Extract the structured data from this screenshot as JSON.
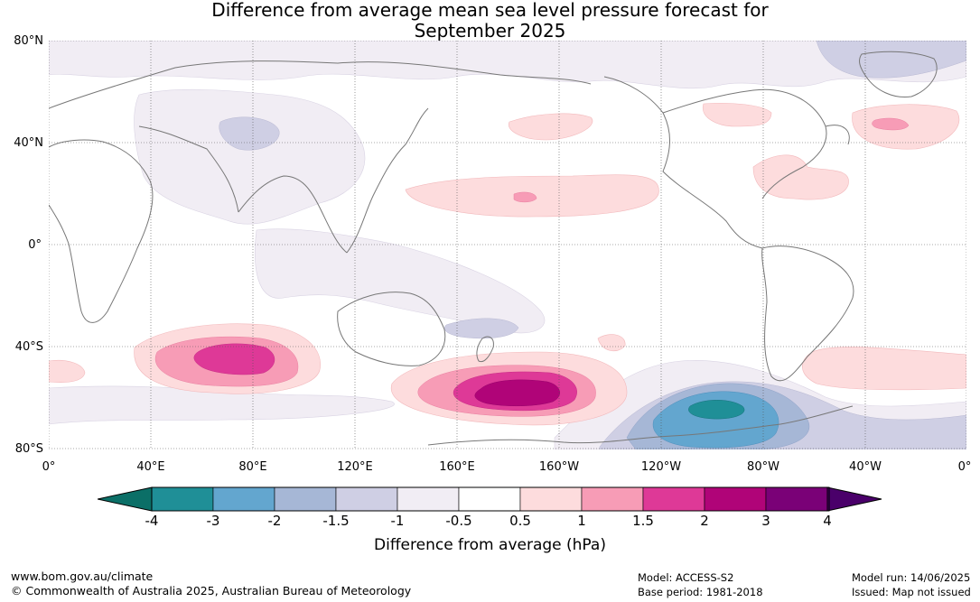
{
  "title": {
    "line1": "Difference from average mean sea level pressure forecast for",
    "line2": "September 2025"
  },
  "axes": {
    "lat_labels": [
      "80°N",
      "40°N",
      "0°",
      "40°S",
      "80°S"
    ],
    "lon_labels": [
      "0°",
      "40°E",
      "80°E",
      "120°E",
      "160°E",
      "160°W",
      "120°W",
      "80°W",
      "40°W",
      "0°"
    ]
  },
  "colorbar": {
    "ticks": [
      "-4",
      "-3",
      "-2",
      "-1.5",
      "-1",
      "-0.5",
      "0.5",
      "1",
      "1.5",
      "2",
      "3",
      "4"
    ],
    "colors": [
      "#0b6f67",
      "#1f8f97",
      "#63a6cf",
      "#a6b7d6",
      "#cfcfe4",
      "#f1edf4",
      "#ffffff",
      "#fddcdd",
      "#f79cb6",
      "#de3997",
      "#b00478",
      "#7a0177",
      "#4a006a"
    ],
    "label": "Difference from average (hPa)"
  },
  "footer": {
    "url": "www.bom.gov.au/climate",
    "copyright": "© Commonwealth of Australia 2025, Australian Bureau of Meteorology",
    "model": "Model: ACCESS-S2",
    "base_period": "Base period: 1981-2018",
    "model_run": "Model run: 14/06/2025",
    "issued": "Issued: Map not issued"
  }
}
